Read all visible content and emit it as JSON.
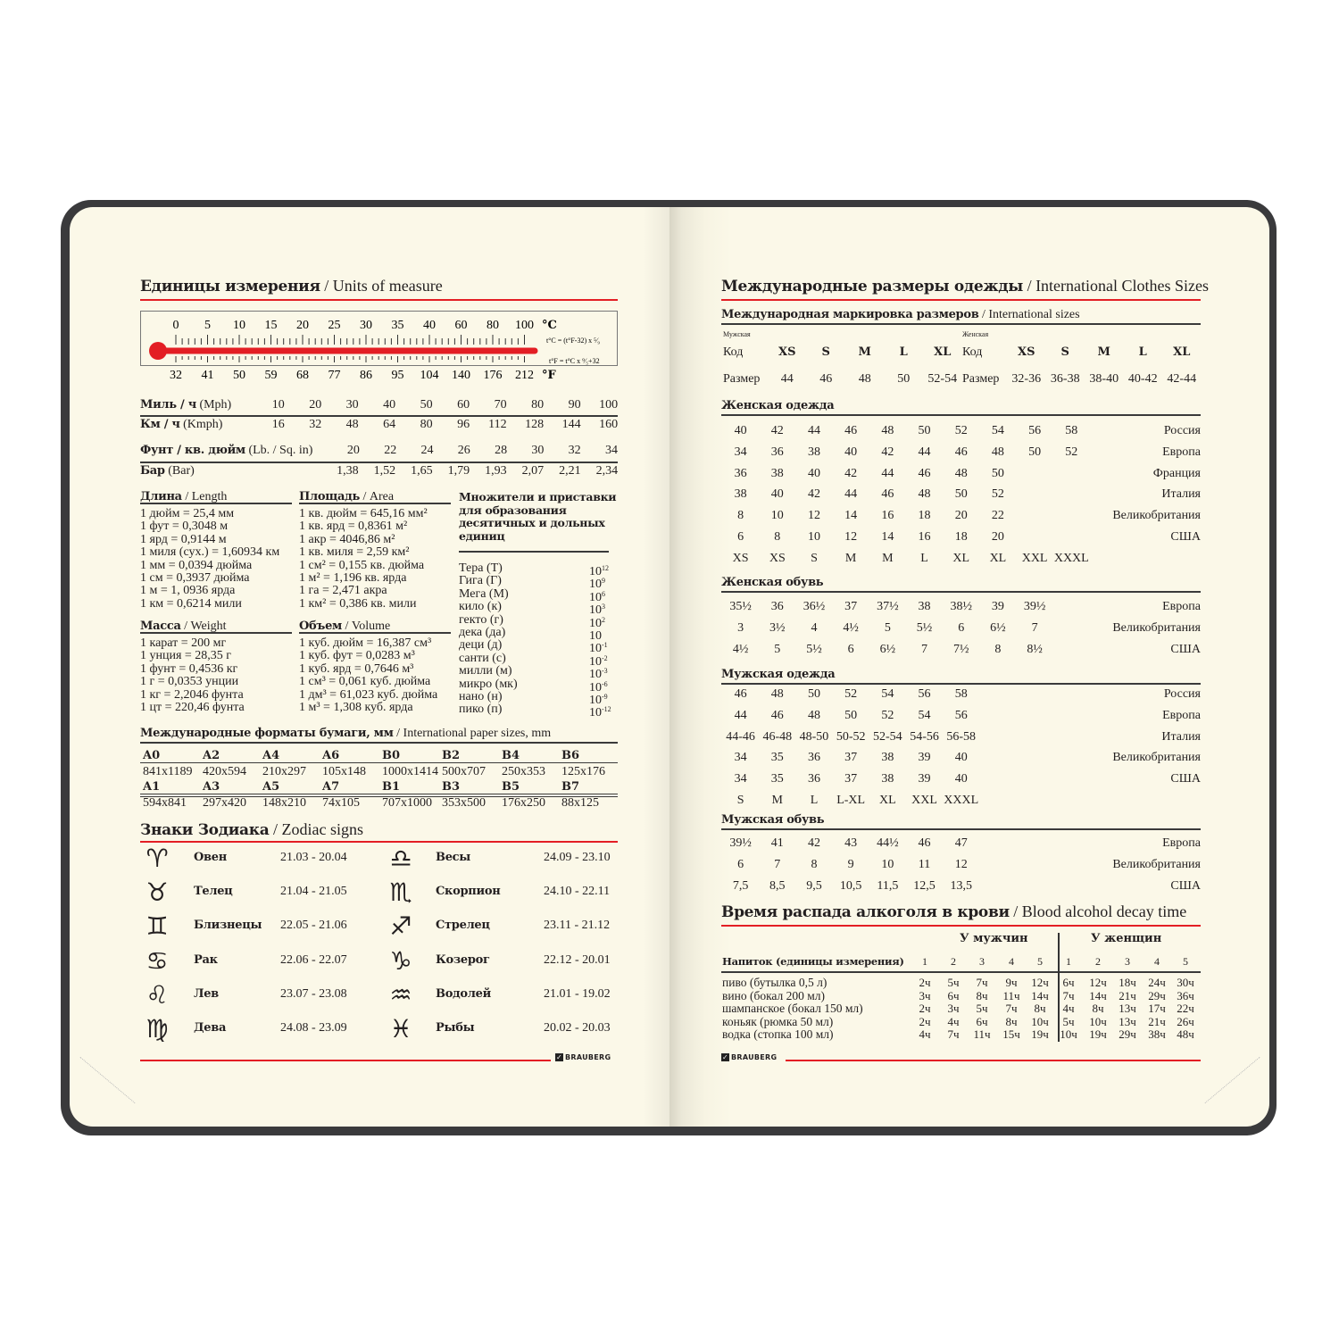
{
  "left": {
    "title": {
      "ru": "Единицы измерения",
      "en": "/ Units of measure"
    },
    "thermometer": {
      "celsius": [
        "0",
        "5",
        "10",
        "15",
        "20",
        "25",
        "30",
        "35",
        "40",
        "60",
        "80",
        "100"
      ],
      "fahrenheit": [
        "32",
        "41",
        "50",
        "59",
        "68",
        "77",
        "86",
        "95",
        "104",
        "140",
        "176",
        "212"
      ],
      "c_unit": "°C",
      "f_unit": "°F",
      "formula_c": "t°C = (t°F-32) x ⁵⁄₉",
      "formula_f": "t°F = t°C x ⁹⁄₅+32",
      "color": "#e31e24"
    },
    "conversions": [
      {
        "bold": "Миль / ч",
        "light": "(Mph)",
        "values": [
          "10",
          "20",
          "30",
          "40",
          "50",
          "60",
          "70",
          "80",
          "90",
          "100"
        ]
      },
      {
        "bold": "Км / ч",
        "light": "(Kmph)",
        "values": [
          "16",
          "32",
          "48",
          "64",
          "80",
          "96",
          "112",
          "128",
          "144",
          "160"
        ]
      },
      {
        "bold": "Фунт / кв. дюйм",
        "light": "(Lb. / Sq. in)",
        "values": [
          "",
          "",
          "20",
          "22",
          "24",
          "26",
          "28",
          "30",
          "32",
          "34"
        ]
      },
      {
        "bold": "Бар",
        "light": "(Bar)",
        "values": [
          "",
          "",
          "1,38",
          "1,52",
          "1,65",
          "1,79",
          "1,93",
          "2,07",
          "2,21",
          "2,34"
        ]
      }
    ],
    "length": {
      "ru": "Длина",
      "en": "/ Length",
      "items": [
        "1 дюйм = 25,4 мм",
        "1 фут = 0,3048 м",
        "1 ярд = 0,9144 м",
        "1 миля (сух.) = 1,60934 км",
        "1 мм = 0,0394 дюйма",
        "1 см = 0,3937 дюйма",
        "1 м = 1, 0936 ярда",
        "1 км = 0,6214 мили"
      ]
    },
    "area": {
      "ru": "Площадь",
      "en": "/ Area",
      "items": [
        "1 кв. дюйм = 645,16 мм²",
        "1 кв. ярд = 0,8361 м²",
        "1 акр = 4046,86 м²",
        "1 кв. миля = 2,59 км²",
        "1 см² = 0,155 кв. дюйма",
        "1 м² = 1,196 кв. ярда",
        "1 га = 2,471 акра",
        "1 км² = 0,386 кв. мили"
      ]
    },
    "weight": {
      "ru": "Масса",
      "en": "/ Weight",
      "items": [
        "1 карат = 200 мг",
        "1 унция = 28,35 г",
        "1 фунт = 0,4536 кг",
        "1 г = 0,0353 унции",
        "1 кг = 2,2046 фунта",
        "1 цт = 220,46 фунта"
      ]
    },
    "volume": {
      "ru": "Объем",
      "en": "/ Volume",
      "items": [
        "1 куб. дюйм = 16,387 см³",
        "1 куб. фут = 0,0283 м³",
        "1 куб. ярд = 0,7646 м³",
        "1 см³ = 0,061 куб. дюйма",
        "1 дм³ = 61,023 куб. дюйма",
        "1 м³ = 1,308 куб. ярда"
      ]
    },
    "multipliers": {
      "title": "Множители и приставки для образования десятичных и дольных единиц",
      "items": [
        {
          "name": "Тера (Т)",
          "base": "10",
          "exp": "12"
        },
        {
          "name": "Гига (Г)",
          "base": "10",
          "exp": "9"
        },
        {
          "name": "Мега (М)",
          "base": "10",
          "exp": "6"
        },
        {
          "name": "кило (к)",
          "base": "10",
          "exp": "3"
        },
        {
          "name": "гекто (г)",
          "base": "10",
          "exp": "2"
        },
        {
          "name": "дека (да)",
          "base": "10",
          "exp": ""
        },
        {
          "name": "деци (д)",
          "base": "10",
          "exp": "-1"
        },
        {
          "name": "санти (с)",
          "base": "10",
          "exp": "-2"
        },
        {
          "name": "милли (м)",
          "base": "10",
          "exp": "-3"
        },
        {
          "name": "микро (мк)",
          "base": "10",
          "exp": "-6"
        },
        {
          "name": "нано (н)",
          "base": "10",
          "exp": "-9"
        },
        {
          "name": "пико (п)",
          "base": "10",
          "exp": "-12"
        }
      ]
    },
    "paper": {
      "ru": "Международные форматы бумаги, мм",
      "en": "/ International paper sizes, mm",
      "rows": [
        {
          "codes": [
            "A0",
            "A2",
            "A4",
            "A6",
            "B0",
            "B2",
            "B4",
            "B6"
          ],
          "sizes": [
            "841x1189",
            "420x594",
            "210x297",
            "105x148",
            "1000x1414",
            "500x707",
            "250x353",
            "125x176"
          ]
        },
        {
          "codes": [
            "A1",
            "A3",
            "A5",
            "A7",
            "B1",
            "B3",
            "B5",
            "B7"
          ],
          "sizes": [
            "594x841",
            "297x420",
            "148x210",
            "74x105",
            "707x1000",
            "353x500",
            "176x250",
            "88x125"
          ]
        }
      ]
    },
    "zodiac": {
      "ru": "Знаки Зодиака",
      "en": "/ Zodiac signs",
      "signs": [
        {
          "icon": "♈",
          "name": "Овен",
          "dates": "21.03 - 20.04"
        },
        {
          "icon": "♉",
          "name": "Телец",
          "dates": "21.04 - 21.05"
        },
        {
          "icon": "♊",
          "name": "Близнецы",
          "dates": "22.05 - 21.06"
        },
        {
          "icon": "♋",
          "name": "Рак",
          "dates": "22.06 - 22.07"
        },
        {
          "icon": "♌",
          "name": "Лев",
          "dates": "23.07 - 23.08"
        },
        {
          "icon": "♍",
          "name": "Дева",
          "dates": "24.08 - 23.09"
        },
        {
          "icon": "♎",
          "name": "Весы",
          "dates": "24.09 - 23.10"
        },
        {
          "icon": "♏",
          "name": "Скорпион",
          "dates": "24.10 - 22.11"
        },
        {
          "icon": "♐",
          "name": "Стрелец",
          "dates": "23.11 - 21.12"
        },
        {
          "icon": "♑",
          "name": "Козерог",
          "dates": "22.12 - 20.01"
        },
        {
          "icon": "♒",
          "name": "Водолей",
          "dates": "21.01 - 19.02"
        },
        {
          "icon": "♓",
          "name": "Рыбы",
          "dates": "20.02 - 20.03"
        }
      ]
    },
    "brand": "BRAUBERG"
  },
  "right": {
    "title": {
      "ru": "Международные размеры одежды",
      "en": "/ International Clothes Sizes"
    },
    "intl": {
      "ru": "Международная маркировка размеров",
      "en": "/ International sizes",
      "men_label": "Мужская",
      "women_label": "Женская",
      "code_label": "Код",
      "size_label": "Размер",
      "men_codes": [
        "XS",
        "S",
        "M",
        "L",
        "XL"
      ],
      "men_sizes": [
        "44",
        "46",
        "48",
        "50",
        "52-54"
      ],
      "women_codes": [
        "XS",
        "S",
        "M",
        "L",
        "XL"
      ],
      "women_sizes": [
        "32-36",
        "36-38",
        "38-40",
        "40-42",
        "42-44"
      ]
    },
    "tables": [
      {
        "title": "Женская одежда",
        "rows": [
          {
            "values": [
              "40",
              "42",
              "44",
              "46",
              "48",
              "50",
              "52",
              "54",
              "56",
              "58"
            ],
            "country": "Россия"
          },
          {
            "values": [
              "34",
              "36",
              "38",
              "40",
              "42",
              "44",
              "46",
              "48",
              "50",
              "52"
            ],
            "country": "Европа"
          },
          {
            "values": [
              "36",
              "38",
              "40",
              "42",
              "44",
              "46",
              "48",
              "50"
            ],
            "country": "Франция"
          },
          {
            "values": [
              "38",
              "40",
              "42",
              "44",
              "46",
              "48",
              "50",
              "52"
            ],
            "country": "Италия"
          },
          {
            "values": [
              "8",
              "10",
              "12",
              "14",
              "16",
              "18",
              "20",
              "22"
            ],
            "country": "Великобритания"
          },
          {
            "values": [
              "6",
              "8",
              "10",
              "12",
              "14",
              "16",
              "18",
              "20"
            ],
            "country": "США"
          },
          {
            "values": [
              "XS",
              "XS",
              "S",
              "M",
              "M",
              "L",
              "XL",
              "XL",
              "XXL",
              "XXXL"
            ],
            "country": ""
          }
        ]
      },
      {
        "title": "Женская обувь",
        "rows": [
          {
            "values": [
              "35½",
              "36",
              "36½",
              "37",
              "37½",
              "38",
              "38½",
              "39",
              "39½"
            ],
            "country": "Европа"
          },
          {
            "values": [
              "3",
              "3½",
              "4",
              "4½",
              "5",
              "5½",
              "6",
              "6½",
              "7"
            ],
            "country": "Великобритания"
          },
          {
            "values": [
              "4½",
              "5",
              "5½",
              "6",
              "6½",
              "7",
              "7½",
              "8",
              "8½"
            ],
            "country": "США"
          }
        ]
      },
      {
        "title": "Мужская одежда",
        "rows": [
          {
            "values": [
              "46",
              "48",
              "50",
              "52",
              "54",
              "56",
              "58"
            ],
            "country": "Россия"
          },
          {
            "values": [
              "44",
              "46",
              "48",
              "50",
              "52",
              "54",
              "56"
            ],
            "country": "Европа"
          },
          {
            "values": [
              "44-46",
              "46-48",
              "48-50",
              "50-52",
              "52-54",
              "54-56",
              "56-58"
            ],
            "country": "Италия"
          },
          {
            "values": [
              "34",
              "35",
              "36",
              "37",
              "38",
              "39",
              "40"
            ],
            "country": "Великобритания"
          },
          {
            "values": [
              "34",
              "35",
              "36",
              "37",
              "38",
              "39",
              "40"
            ],
            "country": "США"
          },
          {
            "values": [
              "S",
              "M",
              "L",
              "L-XL",
              "XL",
              "XXL",
              "XXXL"
            ],
            "country": ""
          }
        ]
      },
      {
        "title": "Мужская обувь",
        "rows": [
          {
            "values": [
              "39½",
              "41",
              "42",
              "43",
              "44½",
              "46",
              "47"
            ],
            "country": "Европа"
          },
          {
            "values": [
              "6",
              "7",
              "8",
              "9",
              "10",
              "11",
              "12"
            ],
            "country": "Великобритания"
          },
          {
            "values": [
              "7,5",
              "8,5",
              "9,5",
              "10,5",
              "11,5",
              "12,5",
              "13,5"
            ],
            "country": "США"
          }
        ]
      }
    ],
    "alcohol": {
      "ru": "Время распада алкоголя в крови",
      "en": "/ Blood alcohol decay time",
      "men": "У мужчин",
      "women": "У женщин",
      "drink_header": "Напиток (единицы измерения)",
      "units": [
        "1",
        "2",
        "3",
        "4",
        "5"
      ],
      "rows": [
        {
          "drink": "пиво (бутылка 0,5 л)",
          "men": [
            "2ч",
            "5ч",
            "7ч",
            "9ч",
            "12ч"
          ],
          "women": [
            "6ч",
            "12ч",
            "18ч",
            "24ч",
            "30ч"
          ]
        },
        {
          "drink": "вино (бокал 200 мл)",
          "men": [
            "3ч",
            "6ч",
            "8ч",
            "11ч",
            "14ч"
          ],
          "women": [
            "7ч",
            "14ч",
            "21ч",
            "29ч",
            "36ч"
          ]
        },
        {
          "drink": "шампанское (бокал 150 мл)",
          "men": [
            "2ч",
            "3ч",
            "5ч",
            "7ч",
            "8ч"
          ],
          "women": [
            "4ч",
            "8ч",
            "13ч",
            "17ч",
            "22ч"
          ]
        },
        {
          "drink": "коньяк (рюмка 50 мл)",
          "men": [
            "2ч",
            "4ч",
            "6ч",
            "8ч",
            "10ч"
          ],
          "women": [
            "5ч",
            "10ч",
            "13ч",
            "21ч",
            "26ч"
          ]
        },
        {
          "drink": "водка (стопка 100 мл)",
          "men": [
            "4ч",
            "7ч",
            "11ч",
            "15ч",
            "19ч"
          ],
          "women": [
            "10ч",
            "19ч",
            "29ч",
            "38ч",
            "48ч"
          ]
        }
      ]
    },
    "brand": "BRAUBERG"
  }
}
